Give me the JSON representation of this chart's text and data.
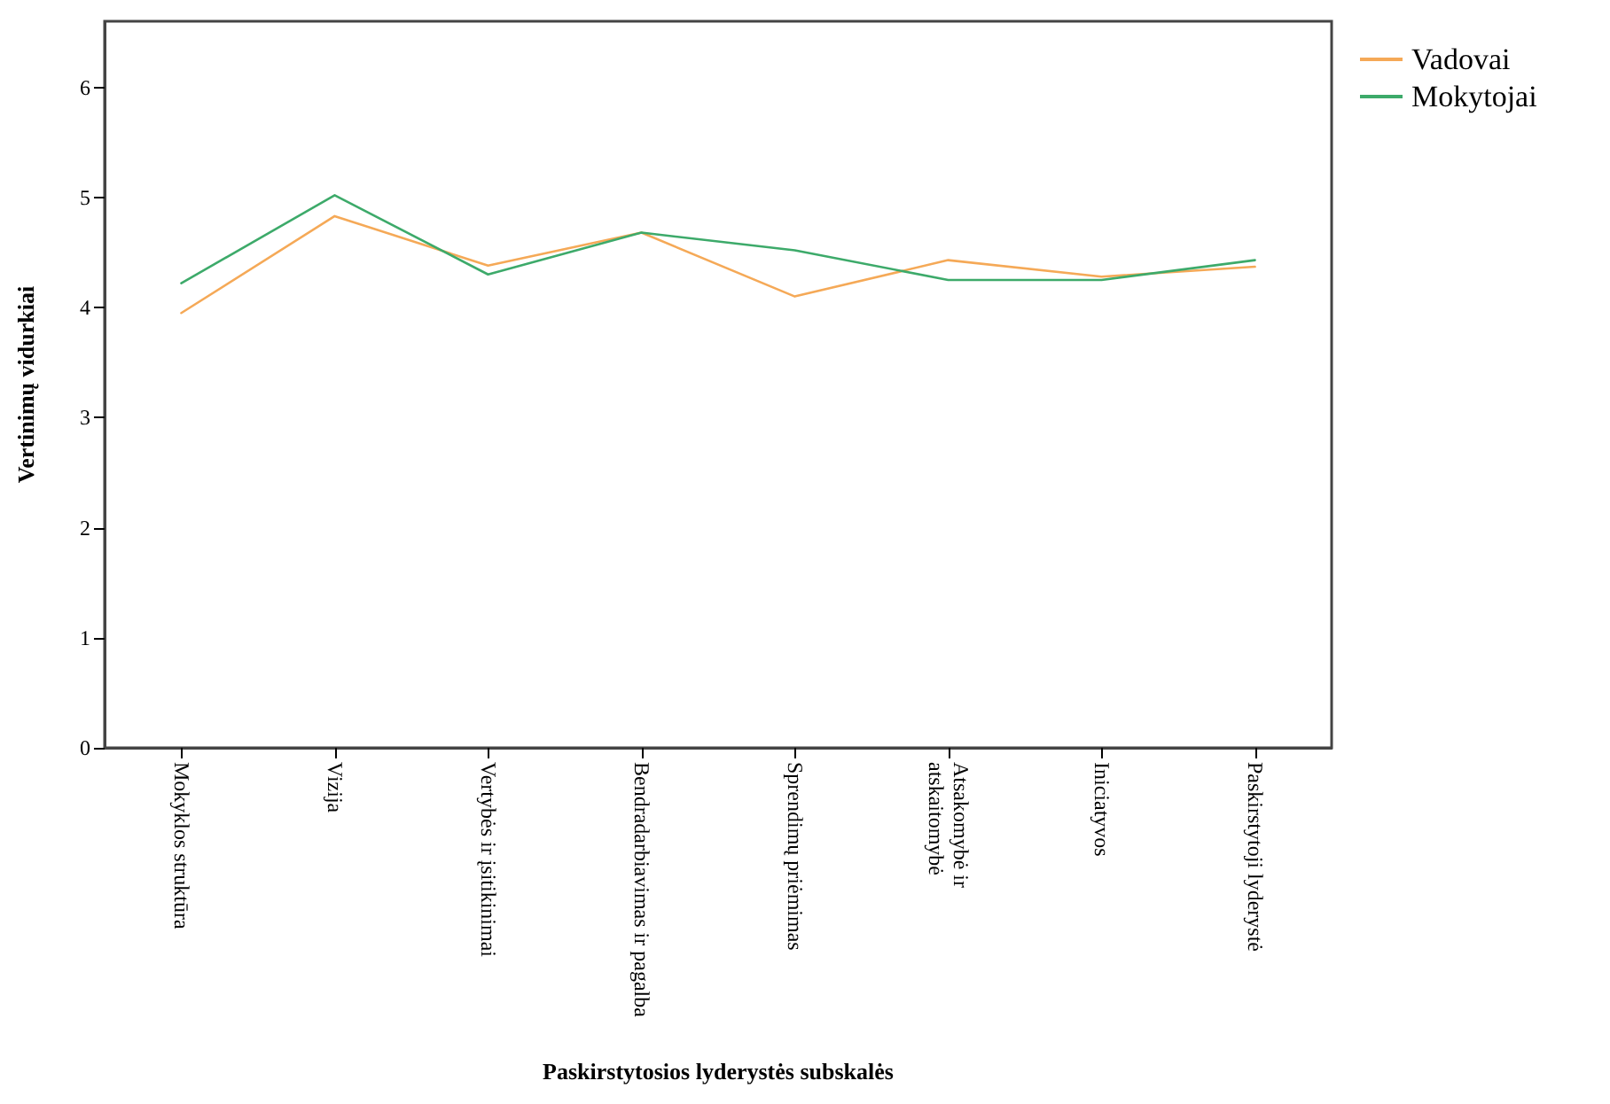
{
  "chart_data": {
    "type": "line",
    "xlabel": "Paskirstytosios lyderystės subskalės",
    "ylabel": "Vertinimų vidurkiai",
    "categories": [
      "Mokyklos struktūra",
      "Vizija",
      "Vertybės ir įsitikinimai",
      "Bendradarbiavimas ir pagalba",
      "Sprendimų priėmimas",
      "Atsakomybė ir atskaitomybė",
      "Iniciatyvos",
      "Paskirstytoji lyderystė"
    ],
    "series": [
      {
        "name": "Vadovai",
        "color": "#f5a957",
        "values": [
          3.95,
          4.83,
          4.38,
          4.68,
          4.1,
          4.43,
          4.28,
          4.37
        ]
      },
      {
        "name": "Mokytojai",
        "color": "#3daa6a",
        "values": [
          4.22,
          5.02,
          4.3,
          4.68,
          4.52,
          4.25,
          4.25,
          4.43
        ]
      }
    ],
    "ylim": [
      0,
      6.6
    ],
    "yticks": [
      0,
      1,
      2,
      3,
      4,
      5,
      6
    ],
    "grid": false,
    "legend": "right",
    "marker": "none",
    "line_style": "solid"
  }
}
